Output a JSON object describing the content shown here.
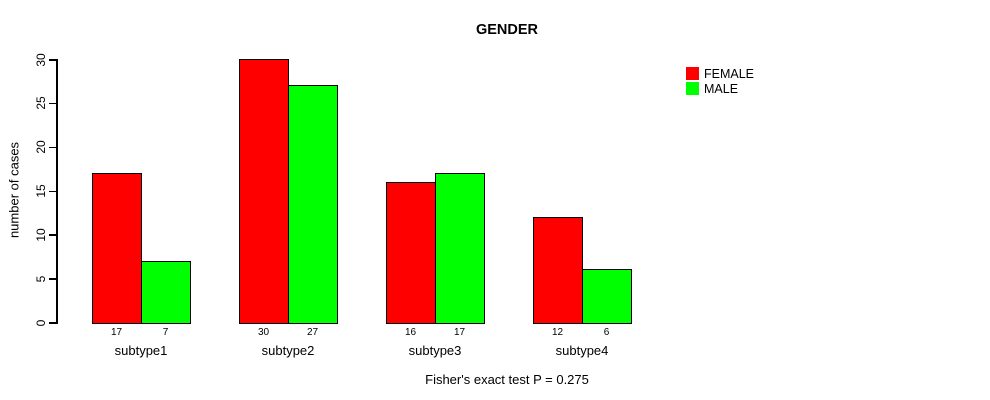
{
  "chart_data": {
    "type": "bar",
    "title": "GENDER",
    "ylabel": "number of cases",
    "xlabel": "",
    "categories": [
      "subtype1",
      "subtype2",
      "subtype3",
      "subtype4"
    ],
    "series": [
      {
        "name": "FEMALE",
        "color": "#ff0000",
        "values": [
          17,
          30,
          16,
          12
        ]
      },
      {
        "name": "MALE",
        "color": "#00ff00",
        "values": [
          7,
          27,
          17,
          6
        ]
      }
    ],
    "bar_value_labels": [
      [
        "17",
        "7"
      ],
      [
        "30",
        "27"
      ],
      [
        "16",
        "17"
      ],
      [
        "12",
        "6"
      ]
    ],
    "yticks": [
      0,
      5,
      10,
      15,
      20,
      25,
      30
    ],
    "ylim": [
      0,
      30
    ],
    "grid": false,
    "legend_position": "right",
    "annotation": "Fisher's exact test P = 0.275"
  },
  "colors": {
    "female": "#ff0000",
    "male": "#00ff00",
    "axis": "#000000",
    "background": "#ffffff"
  }
}
